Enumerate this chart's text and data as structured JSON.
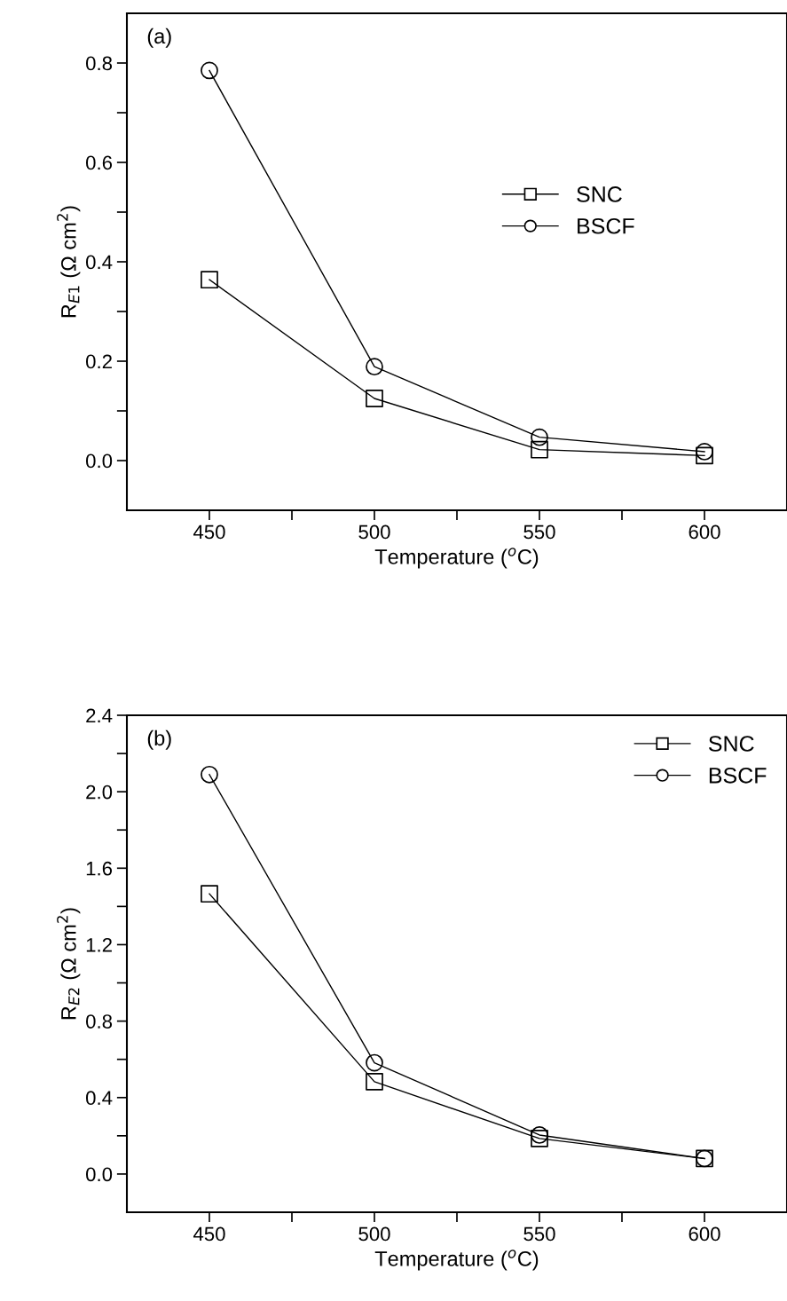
{
  "chart_data": [
    {
      "type": "line",
      "annotations": [
        "(a)"
      ],
      "xlabel": "Temperature ($^{o}$C)",
      "ylabel": "R$_{E1}$ (Ω cm$^{2}$)",
      "x": [
        450,
        500,
        550,
        600
      ],
      "series": [
        {
          "name": "SNC",
          "color": "#000000",
          "marker": "square",
          "values": [
            0.364,
            0.125,
            0.022,
            0.01
          ]
        },
        {
          "name": "BSCF",
          "color": "#000000",
          "marker": "circle",
          "values": [
            0.785,
            0.189,
            0.047,
            0.018
          ]
        }
      ],
      "xlim": [
        425,
        625
      ],
      "xticks": [
        450,
        {
          "value": 475,
          "label": null
        },
        500,
        {
          "value": 525,
          "label": null
        },
        550,
        {
          "value": 575,
          "label": null
        },
        600
      ],
      "ylim": [
        -0.1,
        0.9
      ],
      "yticks": [
        {
          "value": 0,
          "label": "0.0"
        },
        {
          "value": 0.1,
          "label": null
        },
        0.2,
        {
          "value": 0.3,
          "label": null
        },
        0.4,
        {
          "value": 0.5,
          "label": null
        },
        0.6,
        {
          "value": 0.7,
          "label": null
        },
        0.8
      ],
      "legend": "right",
      "grid": false,
      "line_style": "solid"
    },
    {
      "type": "line",
      "annotations": [
        "(b)"
      ],
      "xlabel": "Temperature ($^{o}$C)",
      "ylabel": "R$_{E2}$ (Ω cm$^{2}$)",
      "x": [
        450,
        500,
        550,
        600
      ],
      "series": [
        {
          "name": "SNC",
          "color": "#000000",
          "marker": "square",
          "values": [
            1.466,
            0.483,
            0.186,
            0.081
          ]
        },
        {
          "name": "BSCF",
          "color": "#000000",
          "marker": "circle",
          "values": [
            2.09,
            0.582,
            0.204,
            0.081
          ]
        }
      ],
      "xlim": [
        425,
        625
      ],
      "xticks": [
        450,
        {
          "value": 475,
          "label": null
        },
        500,
        {
          "value": 525,
          "label": null
        },
        550,
        {
          "value": 575,
          "label": null
        },
        600
      ],
      "ylim": [
        -0.2,
        2.4
      ],
      "yticks": [
        {
          "value": 0,
          "label": "0.0"
        },
        {
          "value": 0.2,
          "label": null
        },
        0.4,
        {
          "value": 0.6,
          "label": null
        },
        0.8,
        {
          "value": 1.0,
          "label": null
        },
        1.2,
        {
          "value": 1.4,
          "label": null
        },
        1.6,
        {
          "value": 1.8,
          "label": null
        },
        {
          "value": 2.0,
          "label": "2.0"
        },
        {
          "value": 2.2,
          "label": null
        },
        2.4
      ],
      "legend": "top right",
      "grid": false,
      "line_style": "solid"
    }
  ]
}
